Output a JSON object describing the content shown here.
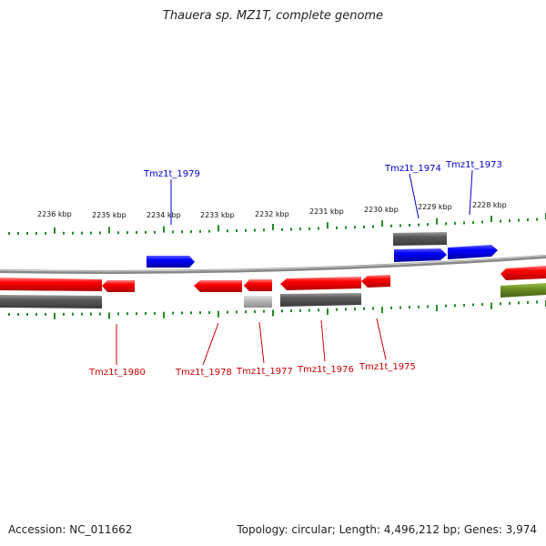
{
  "title": "Thauera sp. MZ1T, complete genome",
  "footer": {
    "accession": "Accession: NC_011662",
    "summary": "Topology: circular; Length: 4,496,212 bp; Genes: 3,974"
  },
  "colors": {
    "forward_gene": "#0000ff",
    "reverse_gene": "#ff0000",
    "rna": "#b3b3b3",
    "other_feature": "#4d4d4d",
    "misc_feature": "#6b8e23",
    "tick": "#228b22",
    "backbone": "#888888"
  },
  "scale_labels": [
    "2236 kbp",
    "2235 kbp",
    "2234 kbp",
    "2233 kbp",
    "2232 kbp",
    "2231 kbp",
    "2230 kbp",
    "2229 kbp",
    "2228 kbp"
  ],
  "gene_labels_top": [
    "Tmz1t_1979",
    "Tmz1t_1974",
    "Tmz1t_1973"
  ],
  "gene_labels_bottom": [
    "Tmz1t_1980",
    "Tmz1t_1978",
    "Tmz1t_1977",
    "Tmz1t_1976",
    "Tmz1t_1975"
  ]
}
